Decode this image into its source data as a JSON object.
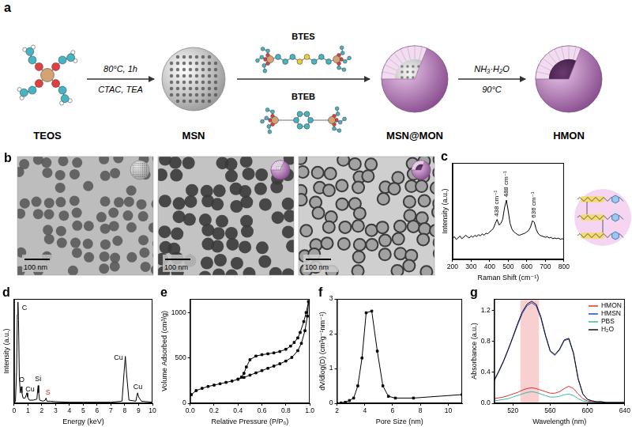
{
  "diagram": {
    "panel": "a",
    "nodes": [
      "TEOS",
      "MSN",
      "MSN@MON",
      "HMON"
    ],
    "arrows": [
      {
        "above": "80°C, 1h",
        "below": "CTAC, TEA"
      },
      {
        "above": "BTES",
        "below": "BTEB"
      },
      {
        "above": "NH₃·H₂O",
        "below": "90°C"
      }
    ]
  },
  "tem_images": {
    "panel": "b",
    "scale_bars": [
      "100 nm",
      "100 nm",
      "100 nm"
    ]
  },
  "chart_data": [
    {
      "panel": "c",
      "type": "line",
      "xlabel": "Raman Shift (cm⁻¹)",
      "ylabel": "Intensity (a.u.)",
      "xlim": [
        200,
        800
      ],
      "xticks": [
        200,
        300,
        400,
        500,
        600,
        700,
        800
      ],
      "ylim": [
        0,
        140
      ],
      "tick_labels": "x",
      "grid": false,
      "x": [
        200,
        210,
        220,
        230,
        240,
        250,
        260,
        270,
        280,
        290,
        300,
        310,
        320,
        330,
        340,
        350,
        360,
        370,
        380,
        390,
        400,
        410,
        420,
        430,
        440,
        450,
        460,
        470,
        480,
        490,
        500,
        510,
        520,
        530,
        540,
        550,
        560,
        570,
        580,
        590,
        600,
        610,
        620,
        630,
        640,
        650,
        660,
        670,
        680,
        690,
        700,
        710,
        720,
        730,
        740,
        750,
        760,
        770,
        780,
        790,
        800
      ],
      "series": [
        {
          "color": "#000000",
          "values": [
            30,
            33,
            29,
            31,
            34,
            30,
            32,
            35,
            33,
            31,
            34,
            32,
            35,
            33,
            36,
            34,
            37,
            35,
            38,
            37,
            40,
            42,
            45,
            52,
            58,
            50,
            52,
            58,
            75,
            86,
            70,
            52,
            44,
            40,
            38,
            36,
            35,
            36,
            37,
            38,
            40,
            42,
            47,
            56,
            54,
            44,
            38,
            35,
            34,
            33,
            32,
            33,
            31,
            32,
            30,
            31,
            30,
            31,
            29,
            30,
            29
          ]
        }
      ],
      "annotations": [
        {
          "text": "438 cm⁻¹",
          "x": 438,
          "y": 62
        },
        {
          "text": "488 cm⁻¹",
          "x": 488,
          "y": 90
        },
        {
          "text": "636 cm⁻¹",
          "x": 636,
          "y": 60
        }
      ]
    },
    {
      "panel": "d",
      "type": "line",
      "xlabel": "Energy (keV)",
      "ylabel": "Intensity (a.u.)",
      "xlim": [
        0,
        10
      ],
      "xticks": [
        0,
        1,
        2,
        3,
        4,
        5,
        6,
        7,
        8,
        9,
        10
      ],
      "ylim": [
        0,
        1
      ],
      "tick_labels": "x",
      "grid": false,
      "x": [
        0,
        0.1,
        0.18,
        0.24,
        0.28,
        0.32,
        0.38,
        0.45,
        0.5,
        0.53,
        0.57,
        0.65,
        0.8,
        0.88,
        0.93,
        0.98,
        1.1,
        1.4,
        1.65,
        1.7,
        1.74,
        1.78,
        1.85,
        2.1,
        2.25,
        2.31,
        2.37,
        2.6,
        3,
        4,
        5,
        6,
        7,
        7.8,
        7.95,
        8.04,
        8.13,
        8.3,
        8.8,
        8.87,
        8.93,
        9.0,
        9.2,
        10
      ],
      "series": [
        {
          "color": "#000000",
          "values": [
            0,
            0.02,
            0.3,
            0.85,
            0.97,
            0.8,
            0.25,
            0.1,
            0.14,
            0.16,
            0.1,
            0.05,
            0.05,
            0.08,
            0.1,
            0.06,
            0.03,
            0.03,
            0.04,
            0.12,
            0.17,
            0.1,
            0.03,
            0.02,
            0.03,
            0.05,
            0.02,
            0.02,
            0.015,
            0.01,
            0.01,
            0.01,
            0.01,
            0.02,
            0.3,
            0.45,
            0.28,
            0.03,
            0.02,
            0.07,
            0.1,
            0.06,
            0.02,
            0.01
          ]
        }
      ],
      "annotations": [
        {
          "text": "C",
          "x": 0.75,
          "y": 0.88
        },
        {
          "text": "O",
          "x": 0.55,
          "y": 0.19
        },
        {
          "text": "Cu",
          "x": 1.15,
          "y": 0.1
        },
        {
          "text": "Si",
          "x": 1.74,
          "y": 0.2
        },
        {
          "text": "S",
          "x": 2.45,
          "y": 0.07,
          "color": "#e02020"
        },
        {
          "text": "Cu",
          "x": 7.55,
          "y": 0.4
        },
        {
          "text": "Cu",
          "x": 8.95,
          "y": 0.12
        }
      ]
    },
    {
      "panel": "e",
      "type": "line",
      "xlabel": "Relative Pressure (P/P₀)",
      "ylabel": "Volume Adsorbed (cm³/g)",
      "xlim": [
        0,
        1
      ],
      "xticks": [
        {
          "value": 0,
          "label": "0.0"
        },
        0.2,
        0.4,
        0.6,
        0.8,
        {
          "value": 1,
          "label": "1.0"
        }
      ],
      "ylim": [
        0,
        1150
      ],
      "yticks": [
        0,
        500,
        1000
      ],
      "grid": false,
      "series": [
        {
          "color": "#000000",
          "marker": "square",
          "x": [
            0.01,
            0.05,
            0.1,
            0.15,
            0.2,
            0.25,
            0.3,
            0.35,
            0.4,
            0.45,
            0.5,
            0.55,
            0.6,
            0.65,
            0.7,
            0.75,
            0.8,
            0.85,
            0.9,
            0.93,
            0.96,
            0.98,
            0.99
          ],
          "values": [
            95,
            140,
            165,
            185,
            200,
            215,
            230,
            245,
            265,
            285,
            310,
            335,
            360,
            385,
            410,
            435,
            465,
            505,
            580,
            660,
            800,
            960,
            1120
          ]
        },
        {
          "color": "#000000",
          "marker": "square",
          "x": [
            0.99,
            0.97,
            0.95,
            0.92,
            0.9,
            0.87,
            0.84,
            0.8,
            0.75,
            0.7,
            0.65,
            0.6,
            0.55,
            0.5,
            0.47,
            0.45,
            0.43,
            0.4
          ],
          "values": [
            1120,
            1000,
            900,
            780,
            720,
            670,
            630,
            595,
            570,
            555,
            545,
            535,
            520,
            480,
            400,
            330,
            290,
            265
          ]
        }
      ]
    },
    {
      "panel": "f",
      "type": "line",
      "xlabel": "Pore Size (nm)",
      "ylabel": "dV/dlog(D) (cm³g⁻¹nm⁻¹)",
      "xlim": [
        2,
        11
      ],
      "xticks": [
        2,
        4,
        6,
        8,
        10
      ],
      "ylim": [
        0,
        3
      ],
      "yticks": [
        0,
        1,
        2,
        3
      ],
      "grid": false,
      "x": [
        2,
        2.3,
        2.6,
        2.9,
        3.2,
        3.5,
        3.8,
        4.1,
        4.5,
        4.9,
        5.3,
        5.7,
        6.2,
        7.5,
        11
      ],
      "series": [
        {
          "color": "#000000",
          "marker": "square",
          "values": [
            0,
            0.01,
            0.03,
            0.08,
            0.15,
            0.5,
            1.3,
            2.6,
            2.65,
            1.5,
            0.5,
            0.2,
            0.15,
            0.15,
            0.25
          ]
        }
      ]
    },
    {
      "panel": "g",
      "type": "line",
      "xlabel": "Wavelength (nm)",
      "ylabel": "Absorbance (a.u.)",
      "xlim": [
        500,
        640
      ],
      "xticks": [
        520,
        560,
        600,
        640
      ],
      "ylim": [
        0,
        1.35
      ],
      "yticks": [
        {
          "value": 0,
          "label": "0.0"
        },
        0.4,
        0.8,
        1.2
      ],
      "grid": false,
      "legend": "upper right",
      "highlight": [
        528,
        548
      ],
      "x": [
        500,
        505,
        510,
        515,
        520,
        525,
        530,
        535,
        540,
        545,
        550,
        555,
        560,
        565,
        570,
        575,
        580,
        585,
        590,
        595,
        600,
        605,
        610,
        615,
        620,
        625,
        630,
        635,
        640
      ],
      "series": [
        {
          "name": "HMON",
          "color": "#e0302a",
          "values": [
            0.06,
            0.07,
            0.08,
            0.1,
            0.12,
            0.14,
            0.17,
            0.19,
            0.2,
            0.19,
            0.17,
            0.15,
            0.13,
            0.13,
            0.15,
            0.19,
            0.22,
            0.19,
            0.12,
            0.06,
            0.03,
            0.02,
            0.01,
            0.01,
            0.01,
            0.01,
            0.01,
            0.01,
            0.01
          ]
        },
        {
          "name": "HMSN",
          "color": "#2a3fd0",
          "values": [
            0.29,
            0.41,
            0.54,
            0.69,
            0.85,
            1.01,
            1.16,
            1.26,
            1.3,
            1.26,
            1.1,
            0.87,
            0.67,
            0.62,
            0.69,
            0.81,
            0.83,
            0.64,
            0.31,
            0.12,
            0.05,
            0.03,
            0.02,
            0.02,
            0.01,
            0.01,
            0.01,
            0.01,
            0.01
          ]
        },
        {
          "name": "PBS",
          "color": "#3cb8a8",
          "values": [
            0.03,
            0.04,
            0.05,
            0.06,
            0.08,
            0.1,
            0.12,
            0.14,
            0.15,
            0.14,
            0.12,
            0.1,
            0.08,
            0.08,
            0.09,
            0.11,
            0.12,
            0.1,
            0.06,
            0.03,
            0.02,
            0.01,
            0.01,
            0.01,
            0.01,
            0.01,
            0.01,
            0.01,
            0.01
          ]
        },
        {
          "name": "H₂O",
          "color": "#111111",
          "values": [
            0.3,
            0.42,
            0.55,
            0.7,
            0.86,
            1.03,
            1.18,
            1.28,
            1.32,
            1.28,
            1.12,
            0.88,
            0.68,
            0.63,
            0.7,
            0.82,
            0.84,
            0.65,
            0.32,
            0.12,
            0.05,
            0.03,
            0.02,
            0.02,
            0.01,
            0.01,
            0.01,
            0.01,
            0.01
          ]
        }
      ]
    }
  ]
}
